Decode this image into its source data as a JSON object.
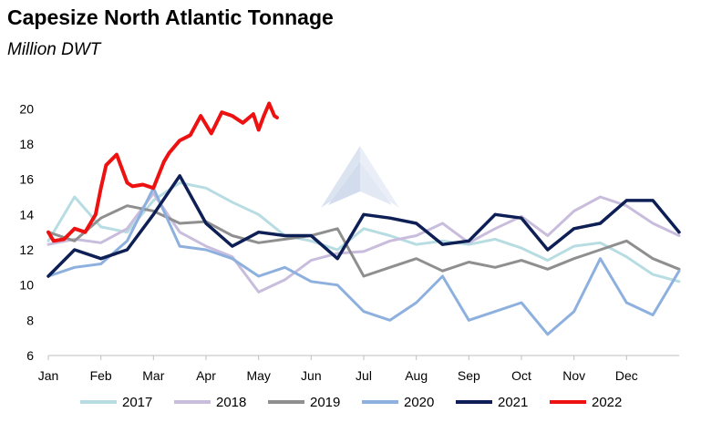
{
  "chart_data": {
    "type": "line",
    "title": "Capesize North Atlantic Tonnage",
    "subtitle": "Million DWT",
    "xlabel": "",
    "ylabel": "",
    "x_ticks": [
      "Jan",
      "Feb",
      "Mar",
      "Apr",
      "May",
      "Jun",
      "Jul",
      "Aug",
      "Sep",
      "Oct",
      "Nov",
      "Dec"
    ],
    "y_ticks": [
      6,
      8,
      10,
      12,
      14,
      16,
      18,
      20
    ],
    "ylim": [
      6,
      21
    ],
    "x_unit": "month index (0 = start of Jan, 12 = end of Dec)",
    "grid": false,
    "legend_position": "bottom",
    "series": [
      {
        "name": "2017",
        "color": "#b7dde2",
        "x": [
          0,
          0.5,
          1,
          1.5,
          2,
          2.5,
          3,
          3.5,
          4,
          4.5,
          5,
          5.5,
          6,
          6.5,
          7,
          7.5,
          8,
          8.5,
          9,
          9.5,
          10,
          10.5,
          11,
          11.5,
          12
        ],
        "y": [
          12.5,
          15.0,
          13.3,
          13.0,
          14.8,
          15.8,
          15.5,
          14.7,
          14.0,
          12.8,
          12.5,
          12.0,
          13.2,
          12.8,
          12.3,
          12.5,
          12.3,
          12.6,
          12.1,
          11.4,
          12.2,
          12.4,
          11.6,
          10.6,
          10.2
        ]
      },
      {
        "name": "2018",
        "color": "#c9bddd",
        "x": [
          0,
          0.5,
          1,
          1.5,
          2,
          2.5,
          3,
          3.5,
          4,
          4.5,
          5,
          5.5,
          6,
          6.5,
          7,
          7.5,
          8,
          8.5,
          9,
          9.5,
          10,
          10.5,
          11,
          11.5,
          12
        ],
        "y": [
          12.3,
          12.6,
          12.4,
          13.2,
          15.2,
          13.0,
          12.2,
          11.6,
          9.6,
          10.3,
          11.4,
          11.8,
          11.9,
          12.5,
          12.8,
          13.5,
          12.4,
          13.2,
          13.9,
          12.8,
          14.2,
          15.0,
          14.5,
          13.5,
          12.8
        ]
      },
      {
        "name": "2019",
        "color": "#8f8f8f",
        "x": [
          0,
          0.5,
          1,
          1.5,
          2,
          2.5,
          3,
          3.5,
          4,
          4.5,
          5,
          5.5,
          6,
          6.5,
          7,
          7.5,
          8,
          8.5,
          9,
          9.5,
          10,
          10.5,
          11,
          11.5,
          12
        ],
        "y": [
          13.0,
          12.5,
          13.8,
          14.5,
          14.2,
          13.5,
          13.6,
          12.8,
          12.4,
          12.6,
          12.8,
          13.2,
          10.5,
          11.0,
          11.5,
          10.8,
          11.3,
          11.0,
          11.4,
          10.9,
          11.5,
          12.0,
          12.5,
          11.5,
          10.9
        ]
      },
      {
        "name": "2020",
        "color": "#8db0df",
        "x": [
          0,
          0.5,
          1,
          1.5,
          2,
          2.5,
          3,
          3.5,
          4,
          4.5,
          5,
          5.5,
          6,
          6.5,
          7,
          7.5,
          8,
          8.5,
          9,
          9.5,
          10,
          10.5,
          11,
          11.5,
          12
        ],
        "y": [
          10.5,
          11.0,
          11.2,
          12.5,
          15.5,
          12.2,
          12.0,
          11.5,
          10.5,
          11.0,
          10.2,
          10.0,
          8.5,
          8.0,
          9.0,
          10.5,
          8.0,
          8.5,
          9.0,
          7.2,
          8.5,
          11.5,
          9.0,
          8.3,
          10.8
        ]
      },
      {
        "name": "2021",
        "color": "#0d1f55",
        "x": [
          0,
          0.5,
          1,
          1.5,
          2,
          2.5,
          3,
          3.5,
          4,
          4.5,
          5,
          5.5,
          6,
          6.5,
          7,
          7.5,
          8,
          8.5,
          9,
          9.5,
          10,
          10.5,
          11,
          11.5,
          12
        ],
        "y": [
          10.5,
          12.0,
          11.5,
          12.0,
          14.0,
          16.2,
          13.5,
          12.2,
          13.0,
          12.8,
          12.8,
          11.5,
          14.0,
          13.8,
          13.5,
          12.3,
          12.5,
          14.0,
          13.8,
          12.0,
          13.2,
          13.5,
          14.8,
          14.8,
          13.0
        ]
      },
      {
        "name": "2022",
        "color": "#ee1111",
        "x": [
          0,
          0.1,
          0.3,
          0.5,
          0.7,
          0.9,
          1.0,
          1.1,
          1.3,
          1.5,
          1.6,
          1.8,
          2.0,
          2.2,
          2.3,
          2.5,
          2.7,
          2.9,
          3.1,
          3.3,
          3.5,
          3.7,
          3.9,
          4.0,
          4.1,
          4.2,
          4.3,
          4.35
        ],
        "y": [
          13.0,
          12.5,
          12.6,
          13.2,
          13.0,
          14.0,
          15.5,
          16.8,
          17.4,
          15.8,
          15.6,
          15.7,
          15.5,
          17.0,
          17.5,
          18.2,
          18.5,
          19.6,
          18.6,
          19.8,
          19.6,
          19.2,
          19.7,
          18.8,
          19.6,
          20.3,
          19.6,
          19.5
        ]
      }
    ]
  }
}
